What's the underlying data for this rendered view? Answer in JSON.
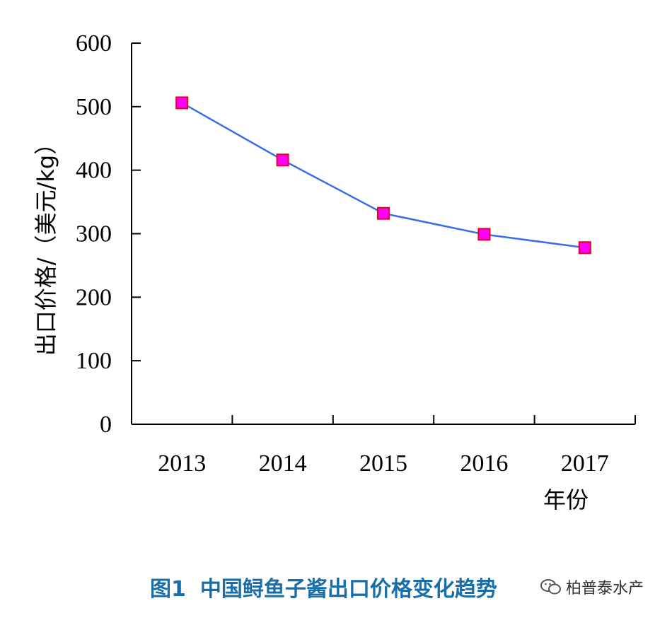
{
  "chart_data": {
    "type": "line",
    "categories": [
      "2013",
      "2014",
      "2015",
      "2016",
      "2017"
    ],
    "series": [
      {
        "values": [
          506,
          416,
          332,
          299,
          278
        ]
      }
    ],
    "ylabel": "出口价格/（美元/kg）",
    "xlabel": "年份",
    "ylim": [
      0,
      600
    ],
    "yticks": [
      "0",
      "100",
      "200",
      "300",
      "400",
      "500",
      "600"
    ],
    "grid": false,
    "colors": {
      "line": "#3a6ee8",
      "marker_fill": "#ff00ff",
      "marker_stroke": "#e8001c"
    }
  },
  "caption": {
    "figure_num": "图1",
    "text": "中国鲟鱼子酱出口价格变化趋势"
  },
  "watermark": {
    "text": "柏普泰水产",
    "icon": "wechat-icon"
  }
}
